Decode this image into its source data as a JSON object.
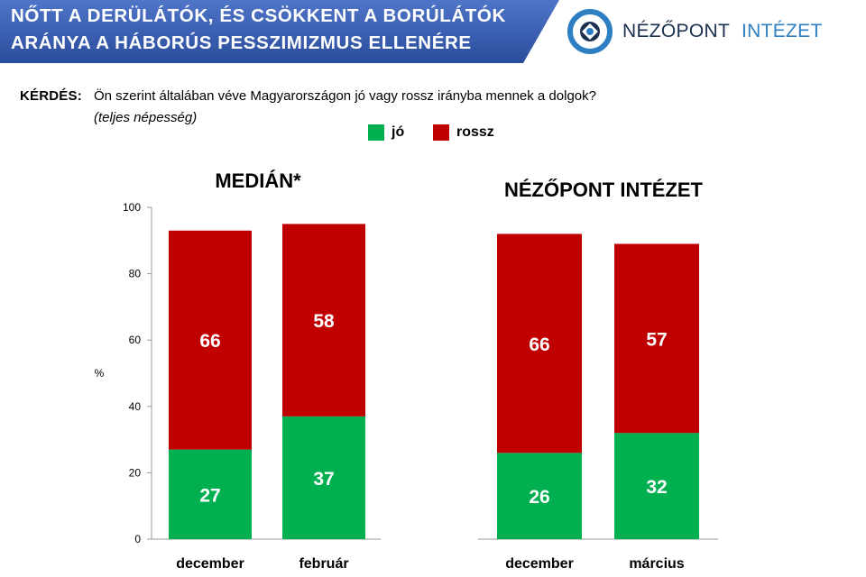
{
  "header": {
    "title_line1": "NŐTT A DERÜLÁTÓK, ÉS CSÖKKENT A BORÚLÁTÓK",
    "title_line2": "ARÁNYA A HÁBORÚS PESSZIMIZMUS ELLENÉRE",
    "banner_color": "#3a5fb7"
  },
  "logo": {
    "name": "NÉZŐPONT",
    "institute": "INTÉZET",
    "icon": "nezopont-logo-icon"
  },
  "question": {
    "label": "KÉRDÉS:",
    "text": "Ön szerint általában véve Magyarországon jó vagy rossz irányba mennek a dolgok?",
    "note": "(teljes népesség)"
  },
  "legend": [
    {
      "label": "jó",
      "color": "#00b050"
    },
    {
      "label": "rossz",
      "color": "#c00000"
    }
  ],
  "chart_data": [
    {
      "type": "bar",
      "stacked": true,
      "title": "MEDIÁN*",
      "ylabel": "%",
      "ylim": [
        0,
        100
      ],
      "yticks": [
        0,
        20,
        40,
        60,
        80,
        100
      ],
      "grid": false,
      "categories": [
        "december",
        "február"
      ],
      "series": [
        {
          "name": "jó",
          "values": [
            27,
            37
          ],
          "color": "#00b050"
        },
        {
          "name": "rossz",
          "values": [
            66,
            58
          ],
          "color": "#c00000"
        }
      ]
    },
    {
      "type": "bar",
      "stacked": true,
      "title": "NÉZŐPONT INTÉZET",
      "ylim": [
        0,
        100
      ],
      "grid": false,
      "categories": [
        "december",
        "március"
      ],
      "series": [
        {
          "name": "jó",
          "values": [
            26,
            32
          ],
          "color": "#00b050"
        },
        {
          "name": "rossz",
          "values": [
            66,
            57
          ],
          "color": "#c00000"
        }
      ]
    }
  ]
}
